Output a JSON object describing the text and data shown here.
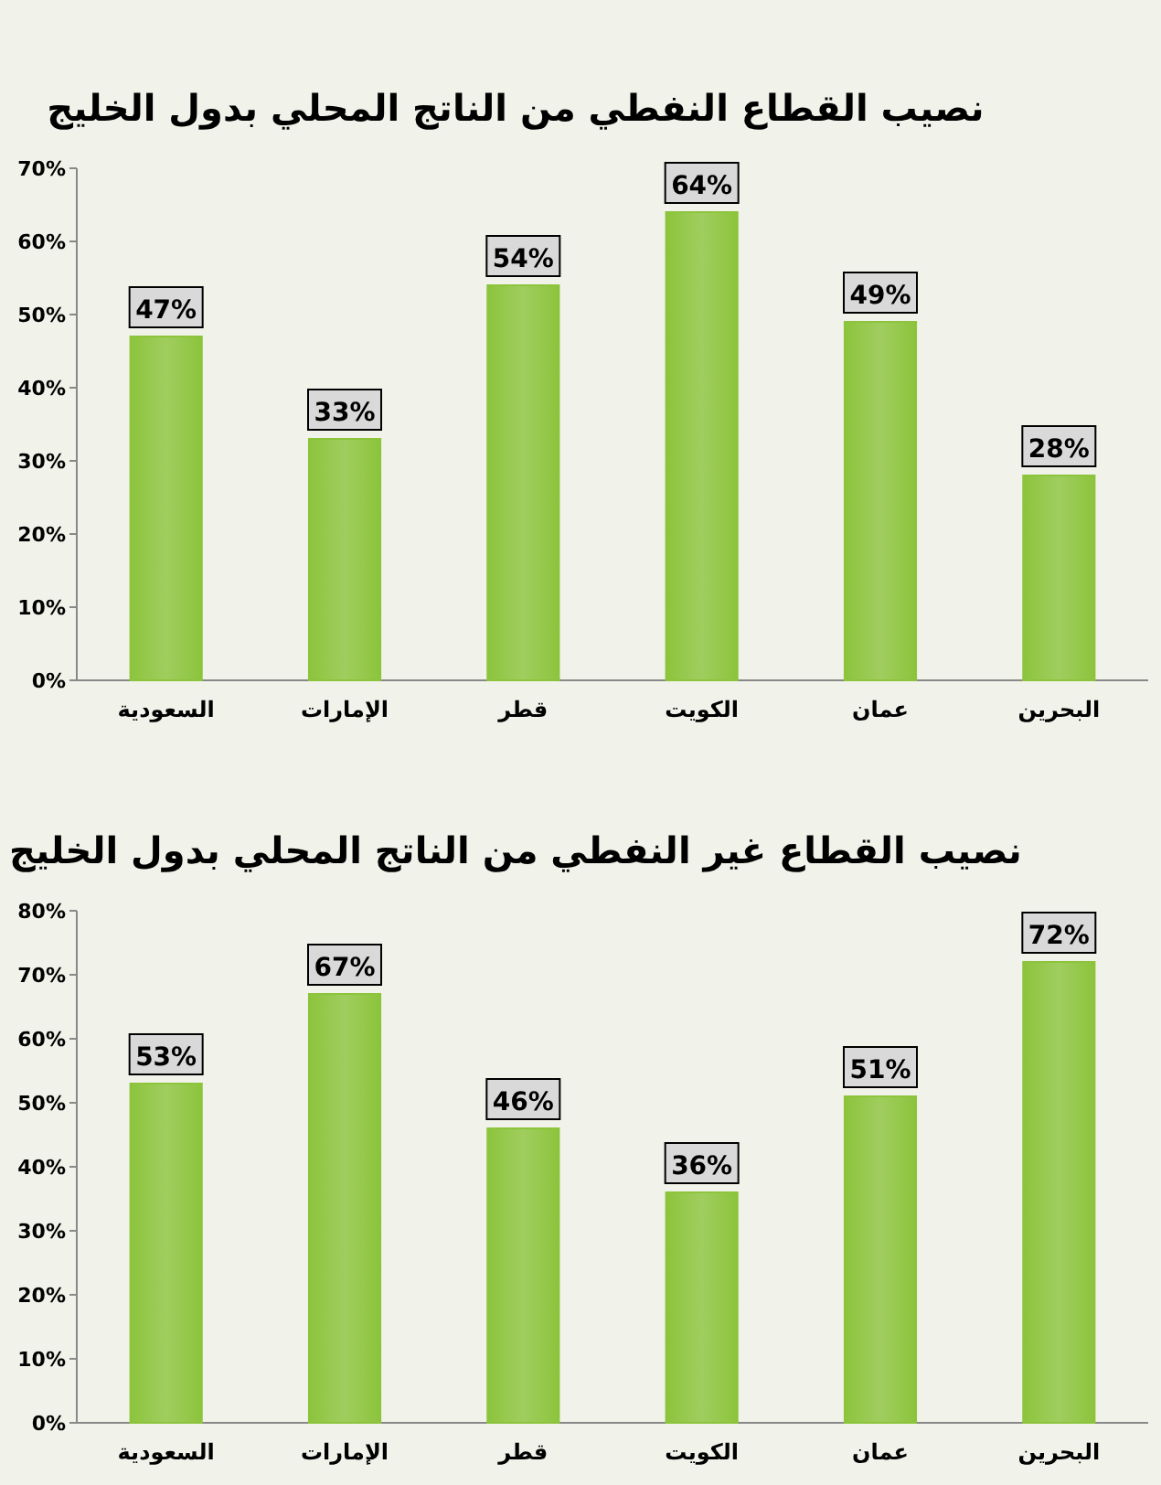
{
  "chart_data": [
    {
      "type": "bar",
      "title": "نصيب القطاع النفطي من الناتج المحلي بدول الخليج",
      "categories": [
        "السعودية",
        "الإمارات",
        "قطر",
        "الكويت",
        "عمان",
        "البحرين"
      ],
      "values": [
        47,
        33,
        54,
        64,
        49,
        28
      ],
      "value_labels": [
        "47%",
        "33%",
        "54%",
        "64%",
        "49%",
        "28%"
      ],
      "color": "#8cc43c",
      "ylim": [
        0,
        70
      ],
      "yticks": [
        {
          "value": 0,
          "label": "0%"
        },
        {
          "value": 10,
          "label": "10%"
        },
        {
          "value": 20,
          "label": "20%"
        },
        {
          "value": 30,
          "label": "30%"
        },
        {
          "value": 40,
          "label": "40%"
        },
        {
          "value": 50,
          "label": "50%"
        },
        {
          "value": 60,
          "label": "60%"
        },
        {
          "value": 70,
          "label": "70%"
        }
      ]
    },
    {
      "type": "bar",
      "title": "نصيب القطاع غير النفطي من الناتج المحلي بدول الخليج",
      "categories": [
        "السعودية",
        "الإمارات",
        "قطر",
        "الكويت",
        "عمان",
        "البحرين"
      ],
      "values": [
        53,
        67,
        46,
        36,
        51,
        72
      ],
      "value_labels": [
        "53%",
        "67%",
        "46%",
        "36%",
        "51%",
        "72%"
      ],
      "color": "#8cc43c",
      "ylim": [
        0,
        80
      ],
      "yticks": [
        {
          "value": 0,
          "label": "0%"
        },
        {
          "value": 10,
          "label": "10%"
        },
        {
          "value": 20,
          "label": "20%"
        },
        {
          "value": 30,
          "label": "30%"
        },
        {
          "value": 40,
          "label": "40%"
        },
        {
          "value": 50,
          "label": "50%"
        },
        {
          "value": 60,
          "label": "60%"
        },
        {
          "value": 70,
          "label": "70%"
        },
        {
          "value": 80,
          "label": "80%"
        }
      ]
    }
  ]
}
